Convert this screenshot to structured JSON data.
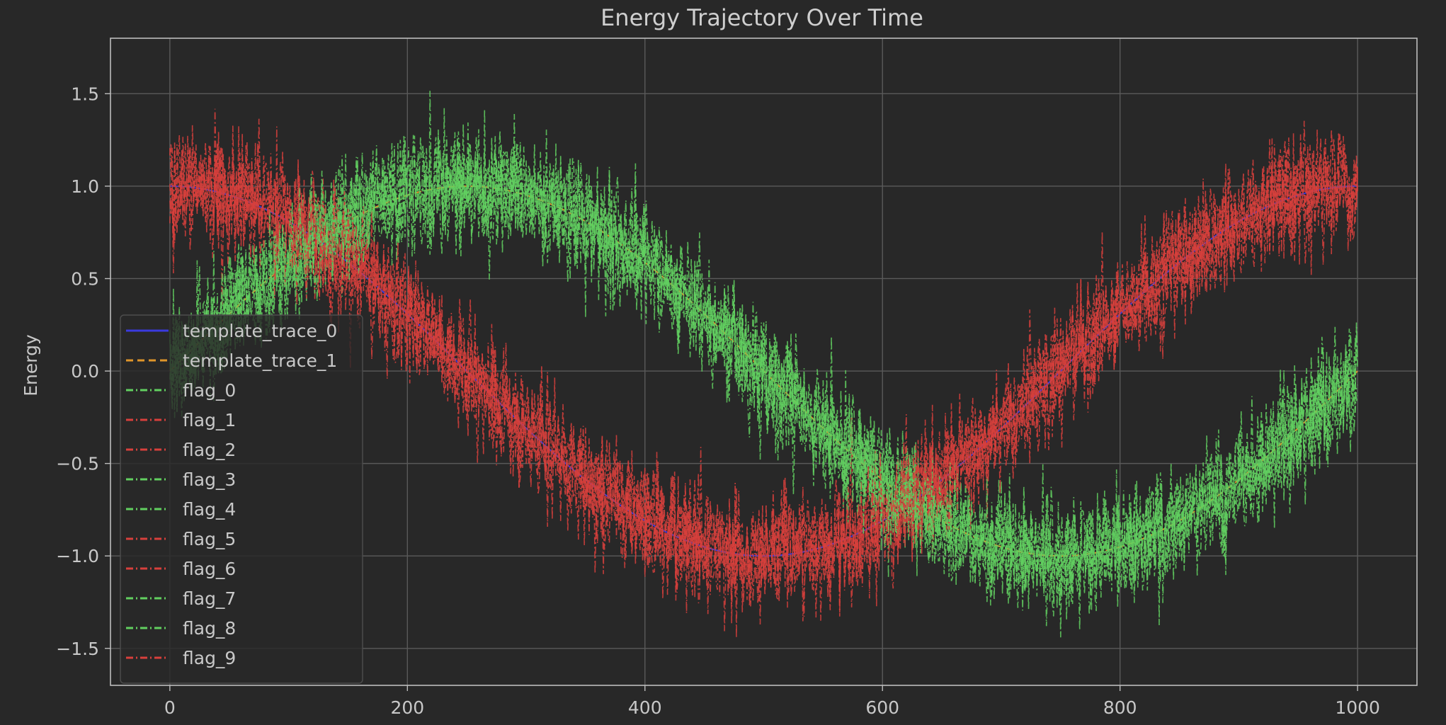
{
  "chart_data": {
    "type": "line",
    "title": "Energy Trajectory Over Time",
    "xlabel": "",
    "ylabel": "Energy",
    "xlim": [
      -50,
      1050
    ],
    "ylim": [
      -1.7,
      1.8
    ],
    "x_ticks": [
      0,
      200,
      400,
      600,
      800,
      1000
    ],
    "x_tick_labels": [
      "0",
      "200",
      "400",
      "600",
      "800",
      "1000"
    ],
    "y_ticks": [
      1.5,
      1.0,
      0.5,
      0.0,
      -0.5,
      -1.0,
      -1.5
    ],
    "y_tick_labels": [
      "1.5",
      "1.0",
      "0.5",
      "0.0",
      "−0.5",
      "−1.0",
      "−1.5"
    ],
    "grid": true,
    "legend_position": "center-left",
    "background_color": "#282828",
    "grid_color": "#5a5a5a",
    "axes_color": "#bdbdbd",
    "series": [
      {
        "name": "template_trace_0",
        "color": "#3a3adf",
        "style": "solid",
        "model": {
          "amp": 1.0,
          "period": 1000,
          "phase_deg": 90,
          "noise": 0.0
        }
      },
      {
        "name": "template_trace_1",
        "color": "#e0962a",
        "style": "dashed",
        "model": {
          "amp": 1.0,
          "period": 1000,
          "phase_deg": 0,
          "noise": 0.0
        }
      },
      {
        "name": "flag_0",
        "color": "#62d060",
        "style": "dashdot",
        "model": {
          "amp": 1.0,
          "period": 1000,
          "phase_deg": 0,
          "noise": 0.15
        }
      },
      {
        "name": "flag_1",
        "color": "#d8403c",
        "style": "dashdot",
        "model": {
          "amp": 1.0,
          "period": 1000,
          "phase_deg": 90,
          "noise": 0.15
        }
      },
      {
        "name": "flag_2",
        "color": "#d8403c",
        "style": "dashdot",
        "model": {
          "amp": 1.0,
          "period": 1000,
          "phase_deg": 90,
          "noise": 0.15
        }
      },
      {
        "name": "flag_3",
        "color": "#62d060",
        "style": "dashdot",
        "model": {
          "amp": 1.0,
          "period": 1000,
          "phase_deg": 0,
          "noise": 0.15
        }
      },
      {
        "name": "flag_4",
        "color": "#62d060",
        "style": "dashdot",
        "model": {
          "amp": 1.0,
          "period": 1000,
          "phase_deg": 0,
          "noise": 0.15
        }
      },
      {
        "name": "flag_5",
        "color": "#d8403c",
        "style": "dashdot",
        "model": {
          "amp": 1.0,
          "period": 1000,
          "phase_deg": 90,
          "noise": 0.15
        }
      },
      {
        "name": "flag_6",
        "color": "#d8403c",
        "style": "dashdot",
        "model": {
          "amp": 1.0,
          "period": 1000,
          "phase_deg": 90,
          "noise": 0.15
        }
      },
      {
        "name": "flag_7",
        "color": "#62d060",
        "style": "dashdot",
        "model": {
          "amp": 1.0,
          "period": 1000,
          "phase_deg": 0,
          "noise": 0.15
        }
      },
      {
        "name": "flag_8",
        "color": "#62d060",
        "style": "dashdot",
        "model": {
          "amp": 1.0,
          "period": 1000,
          "phase_deg": 0,
          "noise": 0.15
        }
      },
      {
        "name": "flag_9",
        "color": "#d8403c",
        "style": "dashdot",
        "model": {
          "amp": 1.0,
          "period": 1000,
          "phase_deg": 90,
          "noise": 0.15
        }
      }
    ]
  }
}
